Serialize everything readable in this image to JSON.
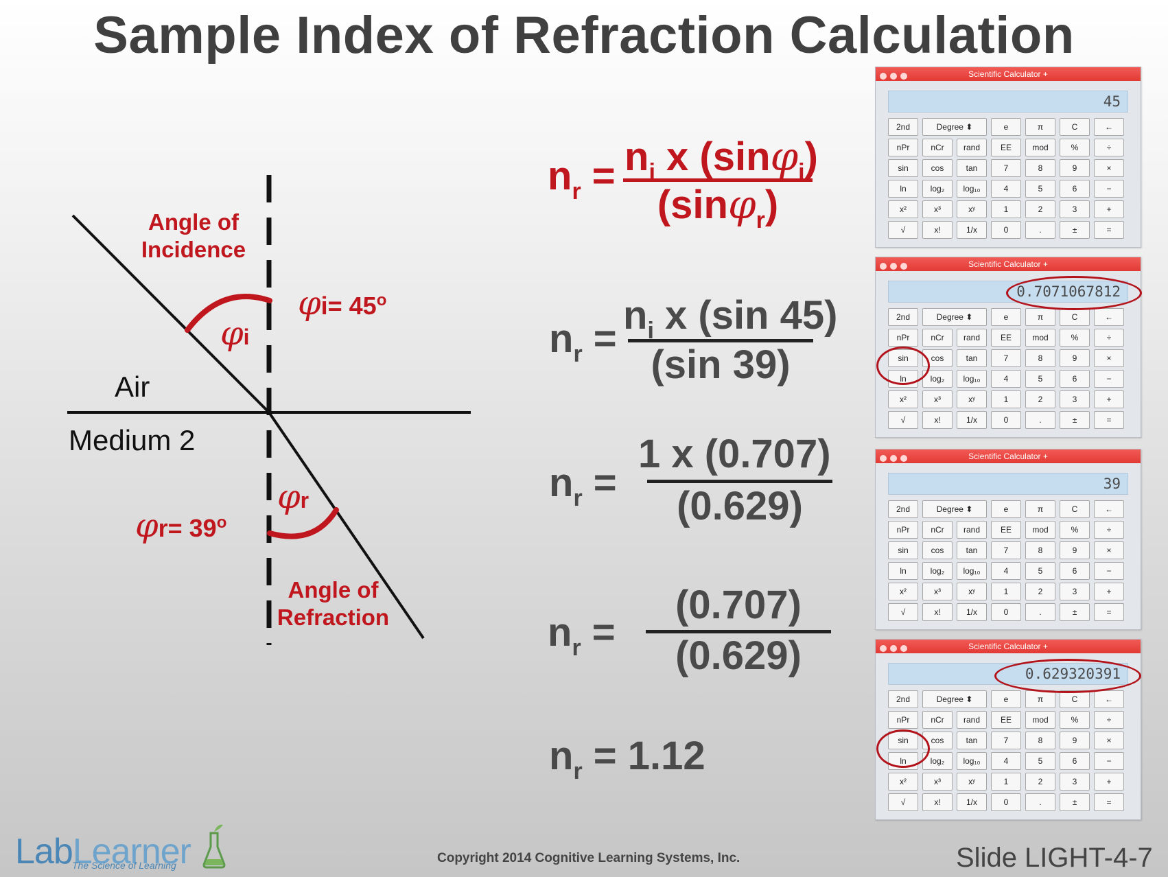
{
  "title": "Sample Index of Refraction Calculation",
  "diagram": {
    "angle_incidence_label": "Angle of Incidence",
    "phi_i_value": "i= 45",
    "phi_i_sup": "o",
    "phi_i_arc_label": "i",
    "air": "Air",
    "medium2": "Medium 2",
    "phi_r_arc_label": "r",
    "phi_r_value": "r= 39",
    "phi_r_sup": "o",
    "angle_refraction_label": "Angle of Refraction",
    "phi_symbol": "φ"
  },
  "equations": {
    "lhs_main": "n",
    "lhs_sub": "r",
    "eq_sign": "=",
    "eq1_num_pre": "n",
    "eq1_num_sub": "i",
    "eq1_num_mid": " x (sin",
    "eq1_num_phi_sub": "i",
    "eq1_num_close": ")",
    "eq1_den_pre": "(sin",
    "eq1_den_phi_sub": "r",
    "eq1_den_close": ")",
    "eq2_num_pre": "n",
    "eq2_num_sub": "i",
    "eq2_num_rest": " x (sin 45)",
    "eq2_den": "(sin 39)",
    "eq3_num": "1 x (0.707)",
    "eq3_den": "(0.629)",
    "eq4_num": "(0.707)",
    "eq4_den": "(0.629)",
    "result": "1.12"
  },
  "calculator": {
    "title": "Scientific Calculator +",
    "keys": [
      "2nd",
      "Degree ⬍",
      "e",
      "π",
      "C",
      "←",
      "nPr",
      "nCr",
      "rand",
      "EE",
      "mod",
      "%",
      "÷",
      "sin",
      "cos",
      "tan",
      "7",
      "8",
      "9",
      "×",
      "ln",
      "log₂",
      "log₁₀",
      "4",
      "5",
      "6",
      "−",
      "x²",
      "x³",
      "xʸ",
      "1",
      "2",
      "3",
      "+",
      "√",
      "x!",
      "1/x",
      "0",
      ".",
      "±",
      "="
    ],
    "displays": [
      "45",
      "0.7071067812",
      "39",
      "0.629320391"
    ]
  },
  "footer": {
    "logo_lab": "Lab",
    "logo_learner": "Learner",
    "logo_tagline": "The Science of Learning",
    "copyright": "Copyright 2014 Cognitive Learning Systems, Inc.",
    "slide": "Slide LIGHT-4-7"
  }
}
